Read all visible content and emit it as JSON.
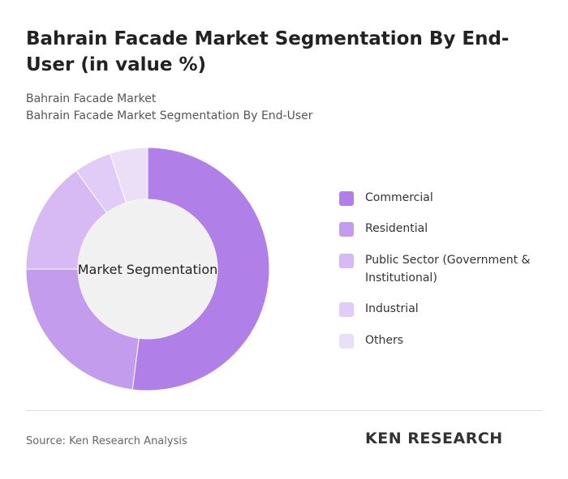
{
  "chart_data": {
    "type": "donut",
    "title": "Bahrain Facade Market Segmentation By End-User (in value %)",
    "subtitle": [
      "Bahrain Facade Market",
      "Bahrain Facade Market Segmentation By End-User"
    ],
    "center_label": "Market Segmentation",
    "categories": [
      "Commercial",
      "Residential",
      "Public Sector (Government & Institutional)",
      "Industrial",
      "Others"
    ],
    "values": [
      52,
      23,
      15,
      5,
      5
    ],
    "colors": [
      "#b07fe8",
      "#c49ced",
      "#d7b9f3",
      "#e0ccf6",
      "#ebdff8"
    ],
    "source": "Source: Ken Research Analysis",
    "logo": "KEN RESEARCH"
  }
}
